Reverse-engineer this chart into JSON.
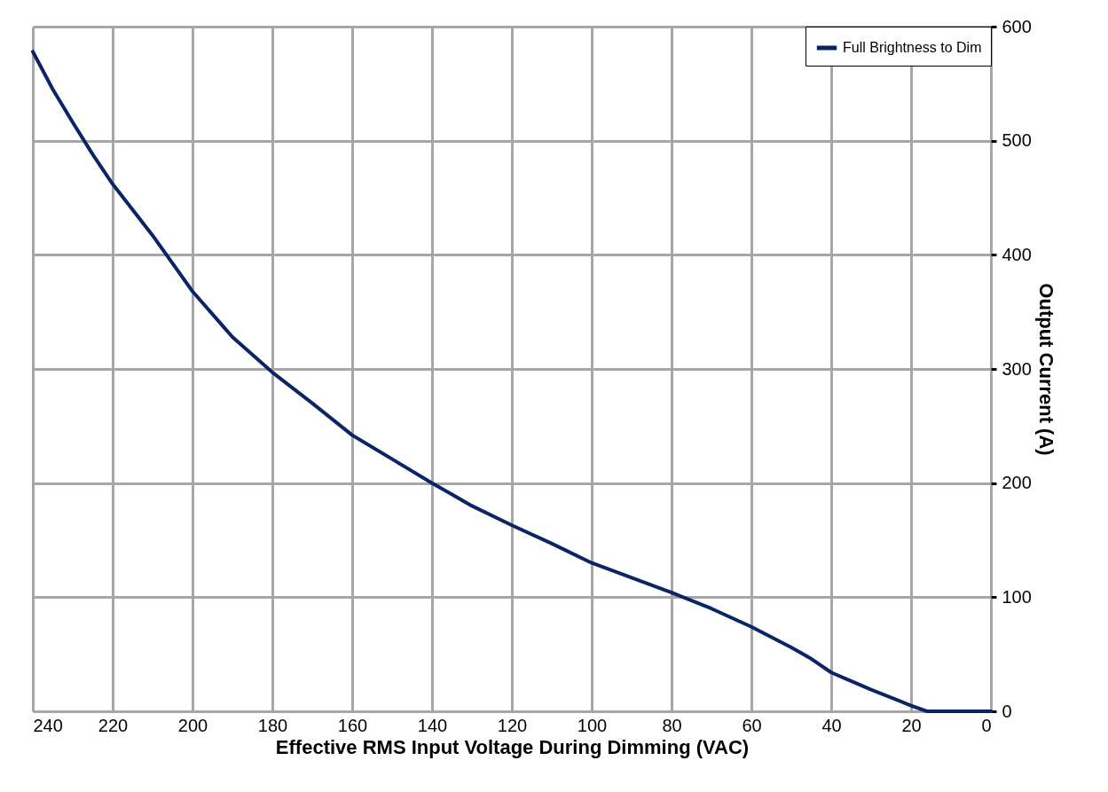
{
  "chart_data": {
    "type": "line",
    "xlabel": "Effective RMS Input Voltage During Dimming (VAC)",
    "ylabel": "Output Current (A)",
    "x": [
      240,
      235,
      230,
      225,
      220,
      210,
      200,
      190,
      180,
      170,
      160,
      150,
      140,
      130,
      120,
      110,
      100,
      90,
      80,
      70,
      60,
      50,
      45,
      40,
      30,
      20,
      16,
      10,
      0
    ],
    "series": [
      {
        "name": "Full Brightness to Dim",
        "color": "#0a2466",
        "values": [
          578,
          545,
          516,
          488,
          462,
          417,
          368,
          328,
          297,
          270,
          242,
          221,
          200,
          180,
          163,
          147,
          130,
          117,
          104,
          90,
          74,
          56,
          46,
          34,
          19,
          5,
          0,
          0,
          0
        ]
      }
    ],
    "xlim": [
      240,
      0
    ],
    "xticks": [
      240,
      220,
      200,
      180,
      160,
      140,
      120,
      100,
      80,
      60,
      40,
      20,
      0
    ],
    "ylim": [
      0,
      600
    ],
    "yticks": [
      0,
      100,
      200,
      300,
      400,
      500,
      600
    ],
    "grid": true,
    "legend": "top right",
    "marker": "none",
    "line_style": "solid"
  }
}
